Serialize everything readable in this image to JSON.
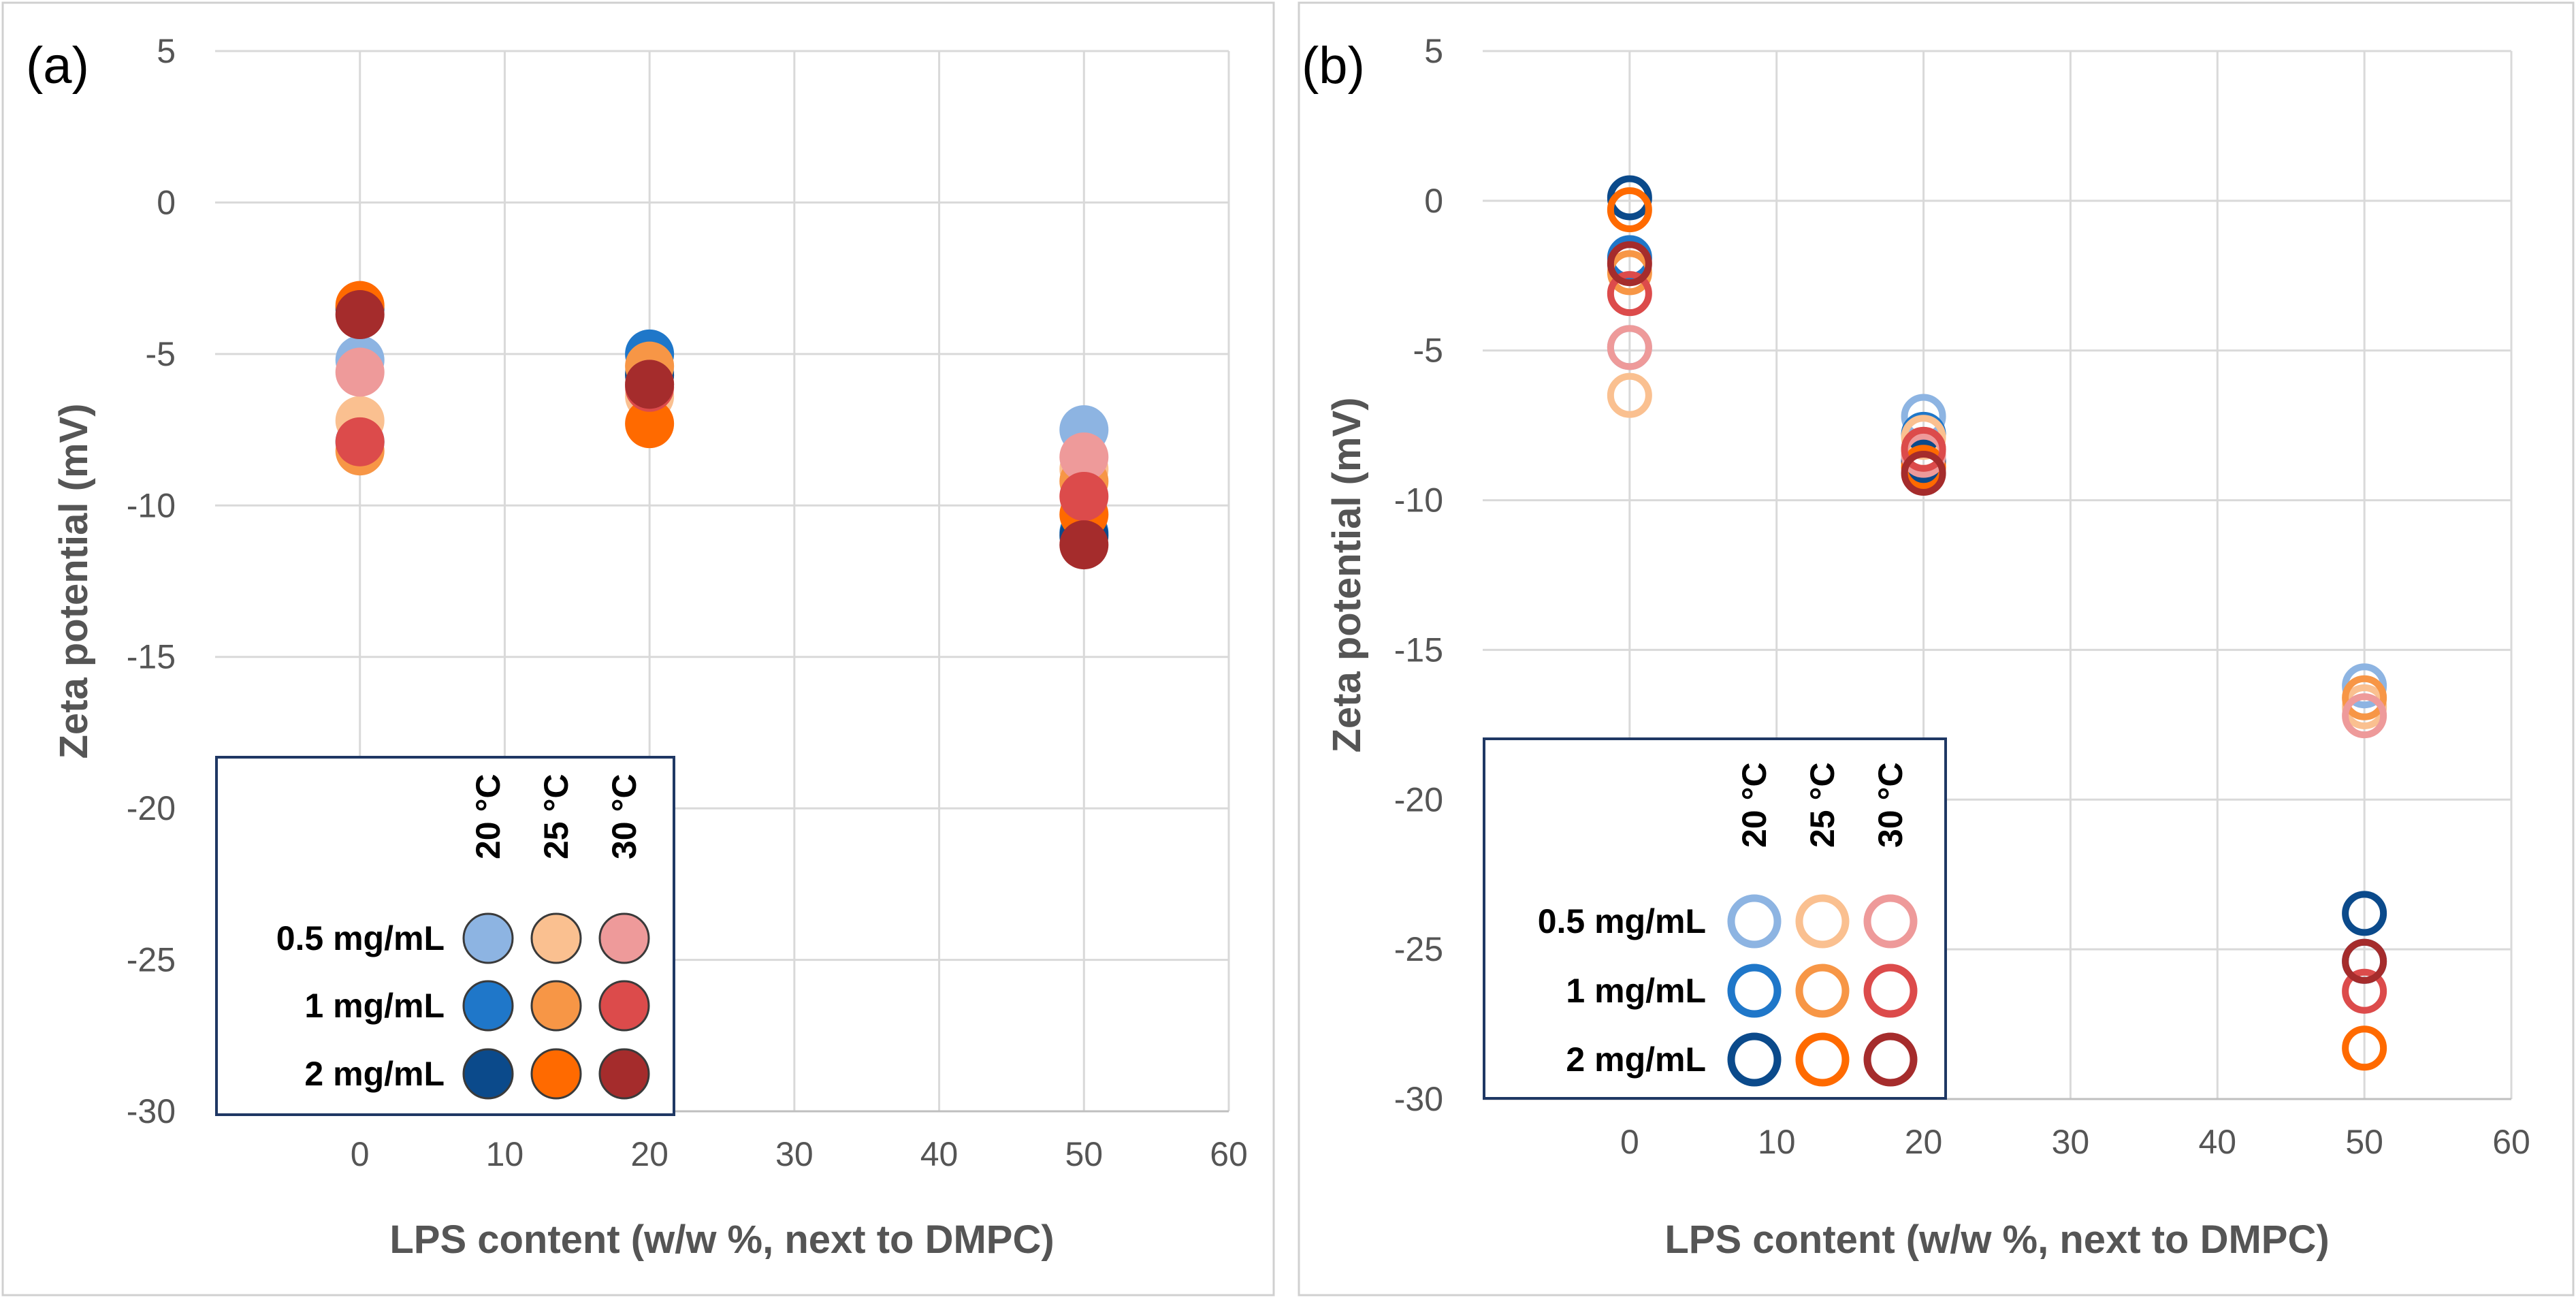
{
  "chart_data": [
    {
      "type": "scatter",
      "panel_label": "(a)",
      "marker_style": "filled",
      "xlabel": "LPS content (w/w %, next to DMPC)",
      "ylabel": "Zeta potential (mV)",
      "xlim": [
        -10,
        60
      ],
      "ylim": [
        -30,
        5
      ],
      "xticks": [
        "0",
        "10",
        "20",
        "30",
        "40",
        "50",
        "60"
      ],
      "yticks": [
        "5",
        "0",
        "-5",
        "-10",
        "-15",
        "-20",
        "-25",
        "-30"
      ],
      "grid": true,
      "legend": {
        "placement": "bottom-left",
        "col_headers": [
          "20 °C",
          "25 °C",
          "30 °C"
        ],
        "row_labels": [
          "0.5 mg/mL",
          "1 mg/mL",
          "2 mg/mL"
        ]
      },
      "series": [
        {
          "name": "0.5 mg/mL, 20 °C",
          "color": "#8DB4E2",
          "x": [
            0,
            20,
            50
          ],
          "y": [
            -5.2,
            -5.6,
            -7.5
          ]
        },
        {
          "name": "1 mg/mL, 20 °C",
          "color": "#1F77C9",
          "x": [
            0,
            20,
            50
          ],
          "y": [
            -7.9,
            -5.0,
            -10.9
          ]
        },
        {
          "name": "2 mg/mL, 20 °C",
          "color": "#0B4A8B",
          "x": [
            0,
            20,
            50
          ],
          "y": [
            -3.5,
            -5.7,
            -11.0
          ]
        },
        {
          "name": "0.5 mg/mL, 25 °C",
          "color": "#FAC090",
          "x": [
            0,
            20,
            50
          ],
          "y": [
            -7.2,
            -6.4,
            -8.8
          ]
        },
        {
          "name": "1 mg/mL, 25 °C",
          "color": "#F79646",
          "x": [
            0,
            20,
            50
          ],
          "y": [
            -8.2,
            -5.4,
            -9.2
          ]
        },
        {
          "name": "2 mg/mL, 25 °C",
          "color": "#FF6A00",
          "x": [
            0,
            20,
            50
          ],
          "y": [
            -3.4,
            -7.3,
            -10.3
          ]
        },
        {
          "name": "0.5 mg/mL, 30 °C",
          "color": "#EE9A9A",
          "x": [
            0,
            20,
            50
          ],
          "y": [
            -5.6,
            -6.0,
            -8.4
          ]
        },
        {
          "name": "1 mg/mL, 30 °C",
          "color": "#DC4B4B",
          "x": [
            0,
            20,
            50
          ],
          "y": [
            -7.9,
            -6.1,
            -9.7
          ]
        },
        {
          "name": "2 mg/mL, 30 °C",
          "color": "#A52C2C",
          "x": [
            0,
            20,
            50
          ],
          "y": [
            -3.7,
            -6.0,
            -11.3
          ]
        }
      ]
    },
    {
      "type": "scatter",
      "panel_label": "(b)",
      "marker_style": "open",
      "xlabel": "LPS content (w/w %, next to DMPC)",
      "ylabel": "Zeta potential (mV)",
      "xlim": [
        -10,
        60
      ],
      "ylim": [
        -30,
        5
      ],
      "xticks": [
        "0",
        "10",
        "20",
        "30",
        "40",
        "50",
        "60"
      ],
      "yticks": [
        "5",
        "0",
        "-5",
        "-10",
        "-15",
        "-20",
        "-25",
        "-30"
      ],
      "grid": true,
      "legend": {
        "placement": "bottom-left",
        "col_headers": [
          "20 °C",
          "25 °C",
          "30 °C"
        ],
        "row_labels": [
          "0.5 mg/mL",
          "1 mg/mL",
          "2 mg/mL"
        ]
      },
      "series": [
        {
          "name": "0.5 mg/mL, 20 °C",
          "color": "#8DB4E2",
          "x": [
            0,
            20,
            50
          ],
          "y": [
            -4.9,
            -7.2,
            -16.2
          ]
        },
        {
          "name": "1 mg/mL, 20 °C",
          "color": "#1F77C9",
          "x": [
            0,
            20,
            50
          ],
          "y": [
            -1.9,
            -7.8,
            -25.4
          ]
        },
        {
          "name": "2 mg/mL, 20 °C",
          "color": "#0B4A8B",
          "x": [
            0,
            20,
            50
          ],
          "y": [
            0.1,
            -8.7,
            -23.8
          ]
        },
        {
          "name": "0.5 mg/mL, 25 °C",
          "color": "#FAC090",
          "x": [
            0,
            20,
            50
          ],
          "y": [
            -6.5,
            -7.9,
            -16.9
          ]
        },
        {
          "name": "1 mg/mL, 25 °C",
          "color": "#F79646",
          "x": [
            0,
            20,
            50
          ],
          "y": [
            -2.4,
            -8.3,
            -16.6
          ]
        },
        {
          "name": "2 mg/mL, 25 °C",
          "color": "#FF6A00",
          "x": [
            0,
            20,
            50
          ],
          "y": [
            -0.3,
            -8.9,
            -28.3
          ]
        },
        {
          "name": "0.5 mg/mL, 30 °C",
          "color": "#EE9A9A",
          "x": [
            0,
            20,
            50
          ],
          "y": [
            -4.9,
            -8.5,
            -17.2
          ]
        },
        {
          "name": "1 mg/mL, 30 °C",
          "color": "#DC4B4B",
          "x": [
            0,
            20,
            50
          ],
          "y": [
            -3.1,
            -8.3,
            -26.4
          ]
        },
        {
          "name": "2 mg/mL, 30 °C",
          "color": "#A52C2C",
          "x": [
            0,
            20,
            50
          ],
          "y": [
            -2.1,
            -9.1,
            -25.4
          ]
        }
      ]
    }
  ]
}
